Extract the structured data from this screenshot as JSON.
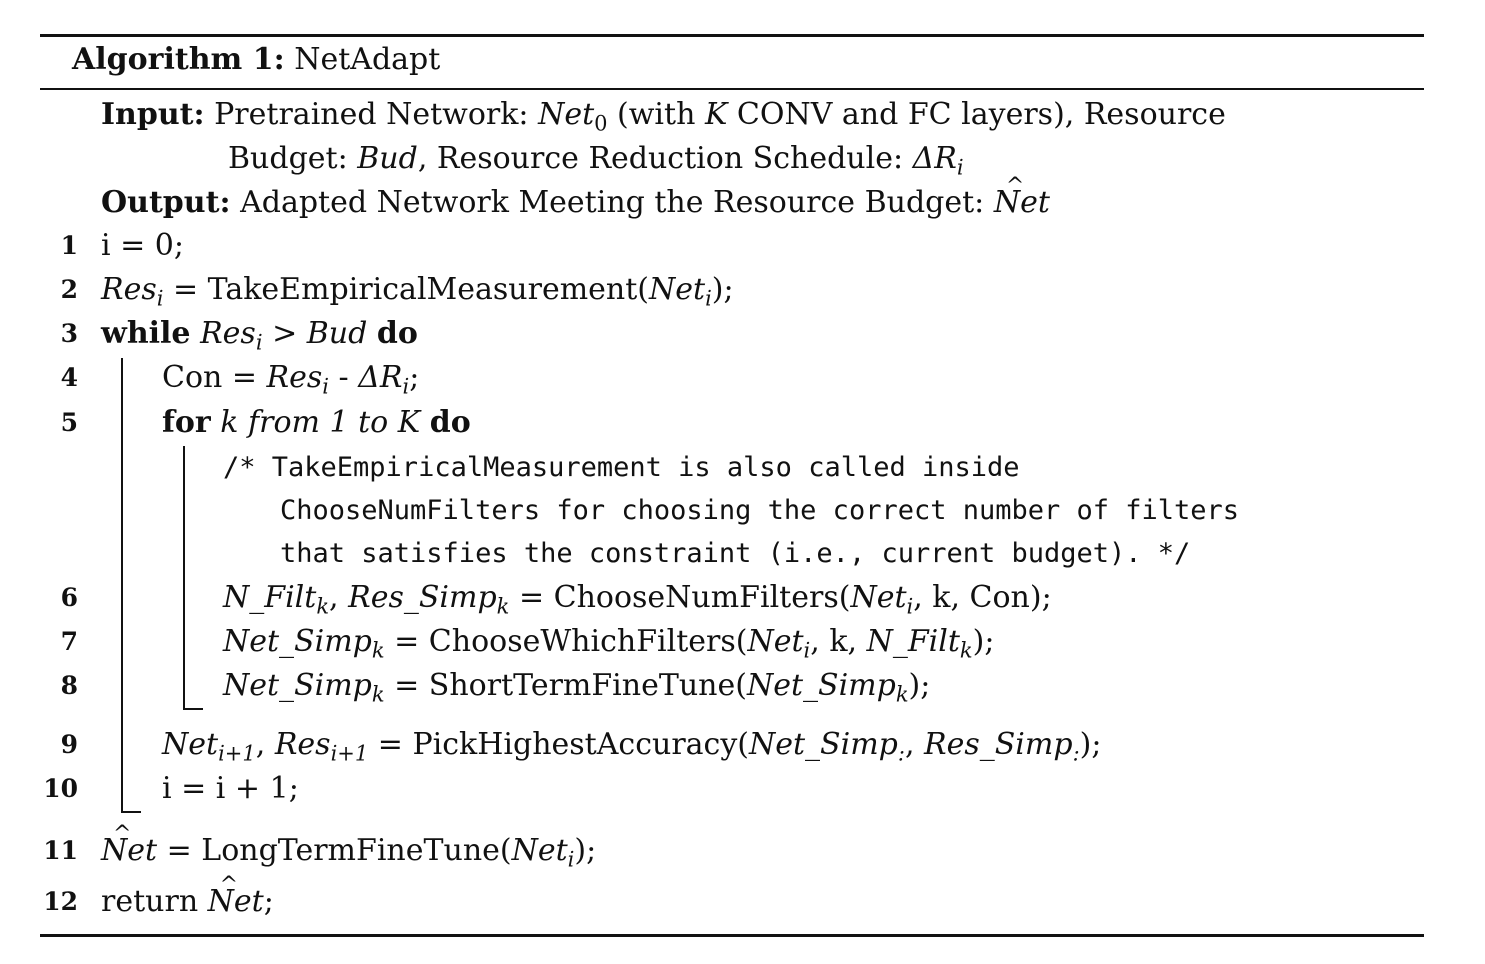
{
  "header": {
    "label": "Algorithm 1:",
    "name": "NetAdapt"
  },
  "input": {
    "label": "Input:",
    "l1_a": "Pretrained Network: ",
    "l1_net": "Net",
    "l1_sub": "0",
    "l1_b": " (with ",
    "l1_k": "K",
    "l1_c": " CONV and FC layers), Resource",
    "l2_a": "Budget: ",
    "l2_bud": "Bud",
    "l2_b": ", Resource Reduction Schedule: ",
    "l2_dr": "ΔR",
    "l2_sub": "i"
  },
  "output": {
    "label": "Output:",
    "text": "Adapted Network Meeting the Resource Budget: ",
    "net": "Net"
  },
  "lines": [
    {
      "num": "1",
      "text": "i = 0;"
    },
    {
      "num": "2",
      "res": "Res",
      "sub": "i",
      "eq": " = TakeEmpiricalMeasurement(",
      "net": "Net",
      "sub2": "i",
      "end": ");"
    },
    {
      "num": "3",
      "kw": "while",
      "res": "Res",
      "sub": "i",
      "op": " > ",
      "bud": "Bud",
      "kw2": "do"
    },
    {
      "num": "4",
      "a": "Con = ",
      "res": "Res",
      "sub": "i",
      "b": " - ",
      "dr": "ΔR",
      "sub2": "i",
      "end": ";"
    },
    {
      "num": "5",
      "kw": "for",
      "it": "k from 1 to K",
      "kw2": "do"
    },
    {
      "num": "6",
      "a": "N_Filt",
      "sub": "k",
      "b": ", ",
      "c": "Res_Simp",
      "sub2": "k",
      "d": " = ChooseNumFilters(",
      "e": "Net",
      "sub3": "i",
      "f": ", k, Con);"
    },
    {
      "num": "7",
      "a": "Net_Simp",
      "sub": "k",
      "b": " = ChooseWhichFilters(",
      "c": "Net",
      "sub2": "i",
      "d": ", k, ",
      "e": "N_Filt",
      "sub3": "k",
      "f": ");"
    },
    {
      "num": "8",
      "a": "Net_Simp",
      "sub": "k",
      "b": " = ShortTermFineTune(",
      "c": "Net_Simp",
      "sub2": "k",
      "d": ");"
    },
    {
      "num": "9",
      "a": "Net",
      "sub": "i+1",
      "b": ", ",
      "c": "Res",
      "sub2": "i+1",
      "d": " = PickHighestAccuracy(",
      "e": "Net_Simp",
      "sub3": ":",
      "f": ", ",
      "g": "Res_Simp",
      "sub4": ":",
      "h": ");"
    },
    {
      "num": "10",
      "text": "i = i + 1;"
    },
    {
      "num": "11",
      "net": "Net",
      "a": " = LongTermFineTune(",
      "b": "Net",
      "sub": "i",
      "c": ");"
    },
    {
      "num": "12",
      "a": "return ",
      "net": "Net",
      "b": ";"
    }
  ],
  "comment": {
    "l1": "/* TakeEmpiricalMeasurement is also called inside",
    "l2": "ChooseNumFilters for choosing the correct number of filters",
    "l3": "that satisfies the constraint (i.e., current budget). */"
  }
}
